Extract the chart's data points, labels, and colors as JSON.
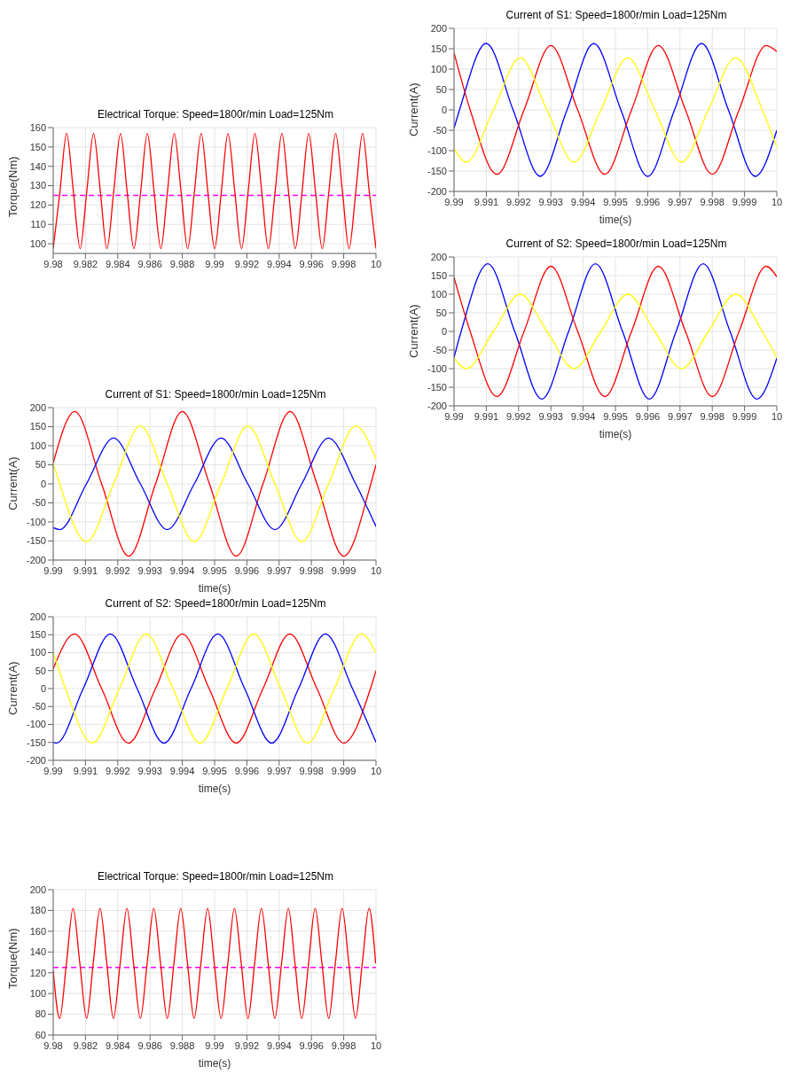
{
  "chart_data": [
    {
      "type": "line",
      "title": "Electrical Torque: Speed=1800r/min Load=125Nm",
      "ylabel": "Torque(Nm)",
      "xlim": [
        9.98,
        10
      ],
      "xticks": [
        9.98,
        9.982,
        9.984,
        9.986,
        9.988,
        9.99,
        9.992,
        9.994,
        9.996,
        9.998,
        10
      ],
      "ylim": [
        95,
        160
      ],
      "yticks": [
        100,
        110,
        120,
        130,
        140,
        150,
        160
      ],
      "grid": true,
      "x": [
        9.98,
        9.98042,
        9.98083,
        9.98125,
        9.98167,
        9.98208,
        9.9825,
        9.98292,
        9.98333,
        9.98375,
        9.98417,
        9.98458,
        9.985,
        9.98542,
        9.98583,
        9.98625,
        9.98667,
        9.98708,
        9.9875,
        9.98792,
        9.98833,
        9.98875,
        9.98917,
        9.98958,
        9.99,
        9.99042,
        9.99083,
        9.99125,
        9.99167,
        9.99208,
        9.9925,
        9.99292,
        9.99333,
        9.99375,
        9.99417,
        9.99458,
        9.995,
        9.99542,
        9.99583,
        9.99625,
        9.99667,
        9.99708,
        9.9975,
        9.99792,
        9.99833,
        9.99875,
        9.99917,
        9.99958,
        10
      ],
      "series": [
        {
          "color": "#ff0000",
          "values": [
            97.5,
            127,
            157,
            127,
            97.5,
            127,
            157,
            127,
            97.5,
            127,
            157,
            127,
            97.5,
            127,
            157,
            127,
            97.5,
            127,
            157,
            127,
            97.5,
            127,
            157,
            127,
            97.5,
            127,
            157,
            127,
            97.5,
            127,
            157,
            127,
            97.5,
            127,
            157,
            127,
            97.5,
            127,
            157,
            127,
            97.5,
            127,
            157,
            127,
            97.5,
            127,
            157,
            127,
            97.5
          ]
        }
      ],
      "ref_lines": [
        {
          "axis": "y",
          "value": 125,
          "color": "#ff00ff",
          "line_style": "dashed"
        }
      ]
    },
    {
      "type": "line",
      "title": "Current of S1: Speed=1800r/min Load=125Nm",
      "xlabel": "time(s)",
      "ylabel": "Current(A)",
      "xlim": [
        9.99,
        10
      ],
      "xticks": [
        9.99,
        9.991,
        9.992,
        9.993,
        9.994,
        9.995,
        9.996,
        9.997,
        9.998,
        9.999,
        10
      ],
      "ylim": [
        -200,
        200
      ],
      "yticks": [
        -200,
        -150,
        -100,
        -50,
        0,
        50,
        100,
        150,
        200
      ],
      "grid": true,
      "series": [
        {
          "color": "#ff0000",
          "x": [
            9.99,
            9.99067,
            9.9915,
            9.99234,
            9.99317,
            9.994,
            9.99484,
            9.99567,
            9.9965,
            9.99734,
            9.99817,
            9.999,
            9.99984,
            10
          ],
          "values": [
            55,
            190,
            0,
            -190,
            0,
            190,
            0,
            -190,
            0,
            190,
            0,
            -190,
            0,
            50
          ]
        },
        {
          "color": "#0000ff",
          "x": [
            9.99,
            9.9902,
            9.99103,
            9.99187,
            9.9927,
            9.99353,
            9.99437,
            9.9952,
            9.99603,
            9.99687,
            9.9977,
            9.99853,
            9.99937,
            10
          ],
          "values": [
            -115,
            -120,
            0,
            120,
            0,
            -120,
            0,
            120,
            0,
            -120,
            0,
            120,
            0,
            -112
          ]
        },
        {
          "color": "#ffff00",
          "x": [
            9.99,
            9.9902,
            9.99103,
            9.99187,
            9.9927,
            9.99353,
            9.99437,
            9.9952,
            9.99603,
            9.99687,
            9.9977,
            9.99853,
            9.99937,
            10
          ],
          "values": [
            55,
            0,
            -152,
            0,
            152,
            0,
            -152,
            0,
            152,
            0,
            -152,
            0,
            152,
            65
          ]
        }
      ]
    },
    {
      "type": "line",
      "title": "Current of S2: Speed=1800r/min Load=125Nm",
      "xlabel": "time(s)",
      "ylabel": "Current(A)",
      "xlim": [
        9.99,
        10
      ],
      "xticks": [
        9.99,
        9.991,
        9.992,
        9.993,
        9.994,
        9.995,
        9.996,
        9.997,
        9.998,
        9.999,
        10
      ],
      "ylim": [
        -200,
        200
      ],
      "yticks": [
        -200,
        -150,
        -100,
        -50,
        0,
        50,
        100,
        150,
        200
      ],
      "grid": true,
      "series": [
        {
          "color": "#ff0000",
          "x": [
            9.99,
            9.99066,
            9.9915,
            9.99233,
            9.99317,
            9.994,
            9.99483,
            9.99567,
            9.9965,
            9.99733,
            9.99817,
            9.999,
            9.99983,
            10
          ],
          "values": [
            55,
            152,
            0,
            -152,
            0,
            152,
            0,
            -152,
            0,
            152,
            0,
            -152,
            0,
            50
          ]
        },
        {
          "color": "#0000ff",
          "x": [
            9.99,
            9.9901,
            9.99093,
            9.99177,
            9.9926,
            9.99343,
            9.99427,
            9.9951,
            9.99593,
            9.99677,
            9.9976,
            9.99843,
            9.99927,
            10
          ],
          "values": [
            -150,
            -152,
            0,
            152,
            0,
            -152,
            0,
            152,
            0,
            -152,
            0,
            152,
            0,
            -150
          ]
        },
        {
          "color": "#ffff00",
          "x": [
            9.99,
            9.99038,
            9.99121,
            9.99205,
            9.99288,
            9.99371,
            9.99455,
            9.99538,
            9.99621,
            9.99705,
            9.99788,
            9.99871,
            9.99955,
            10
          ],
          "values": [
            100,
            0,
            -152,
            0,
            152,
            0,
            -152,
            0,
            152,
            0,
            -152,
            0,
            152,
            100
          ]
        }
      ]
    },
    {
      "type": "line",
      "title": "Electrical Torque: Speed=1800r/min Load=125Nm",
      "xlabel": "time(s)",
      "ylabel": "Torque(Nm)",
      "xlim": [
        9.98,
        10
      ],
      "xticks": [
        9.98,
        9.982,
        9.984,
        9.986,
        9.988,
        9.99,
        9.992,
        9.994,
        9.996,
        9.998,
        10
      ],
      "ylim": [
        60,
        200
      ],
      "yticks": [
        60,
        80,
        100,
        120,
        140,
        160,
        180,
        200
      ],
      "grid": true,
      "x": [
        9.98,
        9.9804,
        9.98082,
        9.98123,
        9.98165,
        9.98207,
        9.98248,
        9.9829,
        9.98332,
        9.98373,
        9.98415,
        9.98457,
        9.98498,
        9.9854,
        9.98582,
        9.98623,
        9.98665,
        9.98707,
        9.98748,
        9.9879,
        9.98832,
        9.98873,
        9.98915,
        9.98957,
        9.98998,
        9.9904,
        9.99082,
        9.99123,
        9.99165,
        9.99207,
        9.99248,
        9.9929,
        9.99332,
        9.99373,
        9.99415,
        9.99457,
        9.99498,
        9.9954,
        9.99582,
        9.99623,
        9.99665,
        9.99707,
        9.99748,
        9.9979,
        9.99832,
        9.99873,
        9.99915,
        9.99957,
        9.99998
      ],
      "series": [
        {
          "color": "#ff0000",
          "values": [
            122,
            76,
            129,
            182,
            129,
            76,
            129,
            182,
            129,
            76,
            129,
            182,
            129,
            76,
            129,
            182,
            129,
            76,
            129,
            182,
            129,
            76,
            129,
            182,
            129,
            76,
            129,
            182,
            129,
            76,
            129,
            182,
            129,
            76,
            129,
            182,
            129,
            76,
            129,
            182,
            129,
            76,
            129,
            182,
            129,
            76,
            129,
            182,
            129
          ]
        }
      ],
      "ref_lines": [
        {
          "axis": "y",
          "value": 125,
          "color": "#ff00ff",
          "line_style": "dashed"
        }
      ]
    },
    {
      "type": "line",
      "title": "Current of S1: Speed=1800r/min Load=125Nm",
      "xlabel": "time(s)",
      "ylabel": "Current(A)",
      "xlim": [
        9.99,
        10
      ],
      "xticks": [
        9.99,
        9.991,
        9.992,
        9.993,
        9.994,
        9.995,
        9.996,
        9.997,
        9.998,
        9.999,
        10
      ],
      "ylim": [
        -200,
        200
      ],
      "yticks": [
        -200,
        -150,
        -100,
        -50,
        0,
        50,
        100,
        150,
        200
      ],
      "grid": true,
      "series": [
        {
          "color": "#0000ff",
          "x": [
            9.99,
            9.99017,
            9.991,
            9.99183,
            9.99267,
            9.9935,
            9.99433,
            9.99517,
            9.996,
            9.99683,
            9.99767,
            9.9985,
            9.99933,
            10
          ],
          "values": [
            -45,
            0,
            163,
            0,
            -163,
            0,
            163,
            0,
            -163,
            0,
            163,
            0,
            -163,
            -50
          ]
        },
        {
          "color": "#ff0000",
          "x": [
            9.99,
            9.9905,
            9.99133,
            9.99217,
            9.993,
            9.99383,
            9.99467,
            9.9955,
            9.99633,
            9.99717,
            9.998,
            9.99883,
            9.99967,
            10
          ],
          "values": [
            140,
            0,
            -158,
            0,
            158,
            0,
            -158,
            0,
            158,
            0,
            -158,
            0,
            158,
            143
          ]
        },
        {
          "color": "#ffff00",
          "x": [
            9.99,
            9.99038,
            9.99122,
            9.99205,
            9.99288,
            9.99372,
            9.99455,
            9.99538,
            9.99622,
            9.99705,
            9.99788,
            9.99872,
            9.99955,
            10
          ],
          "values": [
            -95,
            -128,
            0,
            128,
            0,
            -128,
            0,
            128,
            0,
            -128,
            0,
            128,
            0,
            -92
          ]
        }
      ]
    },
    {
      "type": "line",
      "title": "Current of S2: Speed=1800r/min Load=125Nm",
      "xlabel": "time(s)",
      "ylabel": "Current(A)",
      "xlim": [
        9.99,
        10
      ],
      "xticks": [
        9.99,
        9.991,
        9.992,
        9.993,
        9.994,
        9.995,
        9.996,
        9.997,
        9.998,
        9.999,
        10
      ],
      "ylim": [
        -200,
        200
      ],
      "yticks": [
        -200,
        -150,
        -100,
        -50,
        0,
        50,
        100,
        150,
        200
      ],
      "grid": true,
      "series": [
        {
          "color": "#0000ff",
          "x": [
            9.99,
            9.99022,
            9.99105,
            9.99188,
            9.99272,
            9.99355,
            9.99438,
            9.99522,
            9.99605,
            9.99688,
            9.99772,
            9.99855,
            9.99938,
            10
          ],
          "values": [
            -70,
            0,
            182,
            0,
            -182,
            0,
            182,
            0,
            -182,
            0,
            182,
            0,
            -182,
            -72
          ]
        },
        {
          "color": "#ff0000",
          "x": [
            9.99,
            9.9905,
            9.99133,
            9.99217,
            9.993,
            9.99383,
            9.99467,
            9.9955,
            9.99633,
            9.99717,
            9.998,
            9.99883,
            9.99967,
            10
          ],
          "values": [
            145,
            0,
            -175,
            0,
            175,
            0,
            -175,
            0,
            175,
            0,
            -175,
            0,
            175,
            147
          ]
        },
        {
          "color": "#ffff00",
          "x": [
            9.99,
            9.99038,
            9.99122,
            9.99205,
            9.99288,
            9.99372,
            9.99455,
            9.99538,
            9.99622,
            9.99705,
            9.99788,
            9.99872,
            9.99955,
            10
          ],
          "values": [
            -72,
            -100,
            0,
            100,
            0,
            -100,
            0,
            100,
            0,
            -100,
            0,
            100,
            0,
            -70
          ]
        }
      ]
    }
  ]
}
